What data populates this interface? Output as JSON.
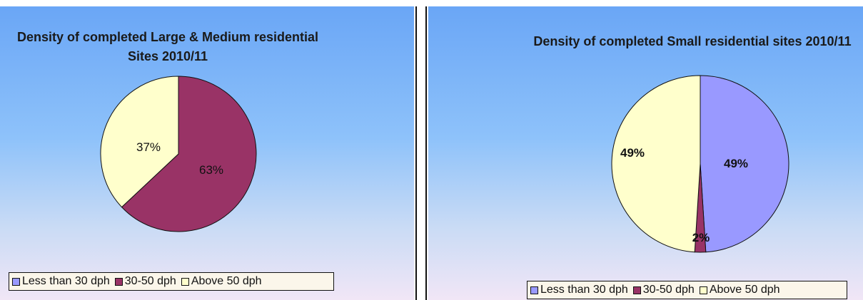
{
  "chart_data": [
    {
      "type": "pie",
      "title": "Density of completed Large & Medium residential Sites 2010/11",
      "categories": [
        "Less than 30 dph",
        "30-50 dph",
        "Above 50 dph"
      ],
      "values": [
        0,
        63,
        37
      ],
      "data_labels": [
        "",
        "63%",
        "37%"
      ],
      "colors": [
        "#9999ff",
        "#993366",
        "#ffffcc"
      ],
      "legend": "bottom-left",
      "label_style": "normal"
    },
    {
      "type": "pie",
      "title": "Density of completed Small residential sites 2010/11",
      "categories": [
        "Less than 30 dph",
        "30-50 dph",
        "Above 50 dph"
      ],
      "values": [
        49,
        2,
        49
      ],
      "data_labels": [
        "49%",
        "2%",
        "49%"
      ],
      "colors": [
        "#9999ff",
        "#993366",
        "#ffffcc"
      ],
      "legend": "bottom-center",
      "label_style": "bold"
    }
  ]
}
